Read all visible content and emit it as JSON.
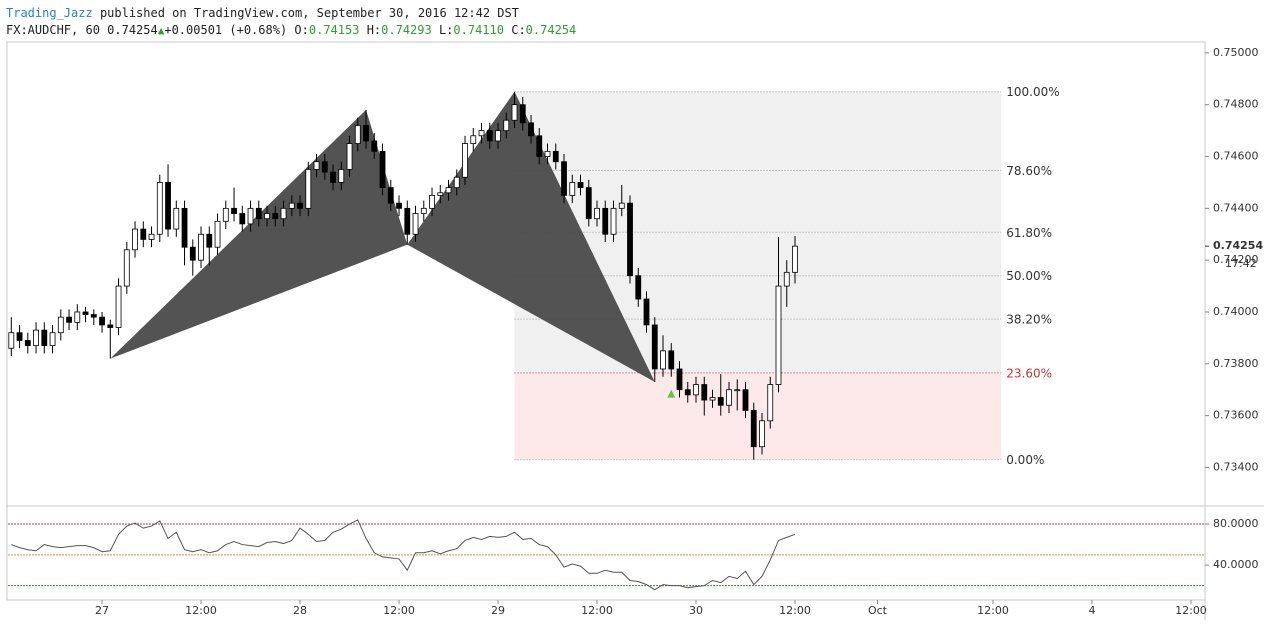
{
  "header": {
    "author": "Trading_Jazz",
    "published": "published on TradingView.com, September 30, 2016 12:42 DST",
    "symbol": "FX:AUDCHF, 60",
    "last": "0.74254",
    "change": "+0.00501 (+0.68%)",
    "ohlc": [
      {
        "label": "O:",
        "value": "0.74153"
      },
      {
        "label": "H:",
        "value": "0.74293"
      },
      {
        "label": "L:",
        "value": "0.74110"
      },
      {
        "label": "C:",
        "value": "0.74254"
      }
    ]
  },
  "chart_data": [
    {
      "type": "candlestick",
      "ohlc": [
        [
          0.7386,
          0.7398,
          0.7383,
          0.7392
        ],
        [
          0.7392,
          0.7395,
          0.7386,
          0.7389
        ],
        [
          0.7389,
          0.7392,
          0.7384,
          0.7387
        ],
        [
          0.7387,
          0.7396,
          0.7384,
          0.7393
        ],
        [
          0.7393,
          0.7396,
          0.7384,
          0.7387
        ],
        [
          0.7387,
          0.7395,
          0.7384,
          0.7392
        ],
        [
          0.7392,
          0.7401,
          0.7389,
          0.7398
        ],
        [
          0.7398,
          0.7401,
          0.7393,
          0.7396
        ],
        [
          0.7396,
          0.7403,
          0.7393,
          0.74
        ],
        [
          0.74,
          0.7402,
          0.7396,
          0.7399
        ],
        [
          0.7399,
          0.7401,
          0.7395,
          0.7398
        ],
        [
          0.7398,
          0.74,
          0.7392,
          0.7395
        ],
        [
          0.7395,
          0.7397,
          0.7382,
          0.7394
        ],
        [
          0.7394,
          0.7413,
          0.7391,
          0.741
        ],
        [
          0.741,
          0.7427,
          0.7407,
          0.7424
        ],
        [
          0.7424,
          0.7435,
          0.7421,
          0.7432
        ],
        [
          0.7432,
          0.7435,
          0.7425,
          0.7428
        ],
        [
          0.7428,
          0.7433,
          0.7425,
          0.743
        ],
        [
          0.743,
          0.7453,
          0.7427,
          0.745
        ],
        [
          0.745,
          0.7457,
          0.7429,
          0.7432
        ],
        [
          0.7432,
          0.7443,
          0.7429,
          0.744
        ],
        [
          0.744,
          0.7443,
          0.7418,
          0.7425
        ],
        [
          0.7425,
          0.7428,
          0.7414,
          0.742
        ],
        [
          0.742,
          0.7433,
          0.7417,
          0.743
        ],
        [
          0.743,
          0.7433,
          0.7418,
          0.7425
        ],
        [
          0.7425,
          0.7438,
          0.7422,
          0.7435
        ],
        [
          0.7435,
          0.7443,
          0.7432,
          0.744
        ],
        [
          0.744,
          0.7448,
          0.7435,
          0.7438
        ],
        [
          0.7438,
          0.7441,
          0.7431,
          0.7434
        ],
        [
          0.7434,
          0.7443,
          0.7431,
          0.744
        ],
        [
          0.744,
          0.7443,
          0.7433,
          0.7436
        ],
        [
          0.7436,
          0.7441,
          0.7433,
          0.7438
        ],
        [
          0.7438,
          0.7441,
          0.7433,
          0.7436
        ],
        [
          0.7436,
          0.7443,
          0.7433,
          0.744
        ],
        [
          0.744,
          0.7445,
          0.7437,
          0.7442
        ],
        [
          0.7442,
          0.7445,
          0.7437,
          0.744
        ],
        [
          0.744,
          0.7458,
          0.7437,
          0.7455
        ],
        [
          0.7455,
          0.7461,
          0.7452,
          0.7458
        ],
        [
          0.7458,
          0.7461,
          0.7451,
          0.7454
        ],
        [
          0.7454,
          0.7457,
          0.7447,
          0.745
        ],
        [
          0.745,
          0.7458,
          0.7447,
          0.7455
        ],
        [
          0.7455,
          0.7468,
          0.7452,
          0.7465
        ],
        [
          0.7465,
          0.7475,
          0.7462,
          0.7472
        ],
        [
          0.7472,
          0.7478,
          0.7463,
          0.7466
        ],
        [
          0.7466,
          0.7469,
          0.7459,
          0.7462
        ],
        [
          0.7462,
          0.7465,
          0.7445,
          0.7448
        ],
        [
          0.7448,
          0.7451,
          0.7439,
          0.7442
        ],
        [
          0.7442,
          0.7445,
          0.7437,
          0.744
        ],
        [
          0.744,
          0.7443,
          0.7426,
          0.743
        ],
        [
          0.743,
          0.7441,
          0.7427,
          0.7438
        ],
        [
          0.7438,
          0.7443,
          0.7435,
          0.744
        ],
        [
          0.744,
          0.7448,
          0.7437,
          0.7445
        ],
        [
          0.7445,
          0.7449,
          0.7442,
          0.7446
        ],
        [
          0.7446,
          0.7451,
          0.7443,
          0.7448
        ],
        [
          0.7448,
          0.7455,
          0.7445,
          0.7452
        ],
        [
          0.7452,
          0.7468,
          0.7449,
          0.7465
        ],
        [
          0.7465,
          0.7471,
          0.7462,
          0.7468
        ],
        [
          0.7468,
          0.7473,
          0.7465,
          0.747
        ],
        [
          0.747,
          0.7473,
          0.7463,
          0.7466
        ],
        [
          0.7466,
          0.7473,
          0.7463,
          0.747
        ],
        [
          0.747,
          0.7477,
          0.7467,
          0.7474
        ],
        [
          0.7474,
          0.7485,
          0.7471,
          0.748
        ],
        [
          0.748,
          0.7483,
          0.747,
          0.7473
        ],
        [
          0.7473,
          0.7476,
          0.7465,
          0.7468
        ],
        [
          0.7468,
          0.7471,
          0.7457,
          0.746
        ],
        [
          0.746,
          0.7465,
          0.7457,
          0.7462
        ],
        [
          0.7462,
          0.7465,
          0.7455,
          0.7458
        ],
        [
          0.7458,
          0.7461,
          0.7442,
          0.7445
        ],
        [
          0.7445,
          0.7453,
          0.7442,
          0.745
        ],
        [
          0.745,
          0.7453,
          0.7445,
          0.7448
        ],
        [
          0.7448,
          0.7451,
          0.7433,
          0.7436
        ],
        [
          0.7436,
          0.7443,
          0.7433,
          0.744
        ],
        [
          0.744,
          0.7443,
          0.7427,
          0.743
        ],
        [
          0.743,
          0.7443,
          0.7427,
          0.744
        ],
        [
          0.744,
          0.7449,
          0.7437,
          0.7442
        ],
        [
          0.7442,
          0.7445,
          0.7411,
          0.7414
        ],
        [
          0.7414,
          0.7417,
          0.7402,
          0.7405
        ],
        [
          0.7405,
          0.7408,
          0.7392,
          0.7395
        ],
        [
          0.7395,
          0.7398,
          0.7373,
          0.7378
        ],
        [
          0.7378,
          0.7391,
          0.7375,
          0.7385
        ],
        [
          0.7385,
          0.7388,
          0.7375,
          0.7378
        ],
        [
          0.7378,
          0.7381,
          0.7367,
          0.737
        ],
        [
          0.737,
          0.7373,
          0.7365,
          0.7368
        ],
        [
          0.7368,
          0.7375,
          0.7365,
          0.7372
        ],
        [
          0.7372,
          0.7375,
          0.736,
          0.7366
        ],
        [
          0.7366,
          0.737,
          0.7363,
          0.7367
        ],
        [
          0.7367,
          0.7376,
          0.736,
          0.7364
        ],
        [
          0.7364,
          0.7373,
          0.7361,
          0.737
        ],
        [
          0.737,
          0.7374,
          0.7362,
          0.737
        ],
        [
          0.737,
          0.7373,
          0.7359,
          0.7362
        ],
        [
          0.7362,
          0.7365,
          0.7343,
          0.7348
        ],
        [
          0.7348,
          0.7361,
          0.7345,
          0.7358
        ],
        [
          0.7358,
          0.7375,
          0.7355,
          0.7372
        ],
        [
          0.7372,
          0.7429,
          0.7369,
          0.741
        ],
        [
          0.741,
          0.742,
          0.7402,
          0.74153
        ],
        [
          0.74153,
          0.74293,
          0.7411,
          0.74254
        ]
      ],
      "up_color": "#ffffff",
      "down_color": "#000000",
      "edge_color": "#000000",
      "xlim": [
        -0.4,
        144.7
      ],
      "xticks": [
        {
          "value": 11,
          "label": "27"
        },
        {
          "value": 23,
          "label": "12:00"
        },
        {
          "value": 35,
          "label": "28"
        },
        {
          "value": 47,
          "label": "12:00"
        },
        {
          "value": 59,
          "label": "29"
        },
        {
          "value": 71,
          "label": "12:00"
        },
        {
          "value": 83,
          "label": "30"
        },
        {
          "value": 95,
          "label": "12:00"
        },
        {
          "value": 105,
          "label": "Oct"
        },
        {
          "value": 119,
          "label": "12:00"
        },
        {
          "value": 131,
          "label": "4"
        },
        {
          "value": 143,
          "label": "12:00"
        }
      ],
      "ylim": [
        0.73255,
        0.75042
      ],
      "yticks": [
        {
          "value": 0.75,
          "label": "0.75000"
        },
        {
          "value": 0.748,
          "label": "0.74800"
        },
        {
          "value": 0.746,
          "label": "0.74600"
        },
        {
          "value": 0.744,
          "label": "0.74400"
        },
        {
          "value": 0.742,
          "label": "0.74200"
        },
        {
          "value": 0.74,
          "label": "0.74000"
        },
        {
          "value": 0.738,
          "label": "0.73800"
        },
        {
          "value": 0.736,
          "label": "0.73600"
        },
        {
          "value": 0.734,
          "label": "0.73400"
        }
      ],
      "last_price": {
        "value": 0.74254,
        "label": "0.74254"
      },
      "countdown": "17:42",
      "pattern": {
        "x": [
          12,
          43,
          48,
          61,
          78
        ],
        "y": [
          0.7382,
          0.7478,
          0.7426,
          0.7485,
          0.7373
        ],
        "color": "#4a4a4a"
      },
      "fib": {
        "x": [
          61,
          120
        ],
        "high": 0.7485,
        "low": 0.7343,
        "levels": [
          100,
          78.6,
          61.8,
          50,
          38.2,
          23.6,
          0
        ],
        "value_labels": [
          "100.00%",
          "78.60%",
          "61.80%",
          "50.00%",
          "38.20%",
          "23.60%",
          "0.00%"
        ],
        "fill": "#f0f0f0",
        "line_color": "#999999",
        "highlight_level": 23.6,
        "highlight_fill": "#fde9e9",
        "highlight_color": "#cc3333"
      },
      "signal": {
        "x": 80,
        "y": 0.73685,
        "color": "#6abf4b"
      }
    },
    {
      "type": "line",
      "values": [
        60,
        57,
        55,
        54,
        60,
        58,
        57,
        58,
        59,
        59,
        57,
        53,
        54,
        70,
        78,
        81,
        76,
        78,
        83,
        66,
        72,
        55,
        53,
        55,
        52,
        54,
        60,
        63,
        60,
        59,
        58,
        62,
        63,
        61,
        64,
        76,
        70,
        63,
        64,
        72,
        75,
        80,
        84,
        66,
        52,
        48,
        47,
        46,
        35,
        52,
        52,
        54,
        51,
        54,
        56,
        64,
        67,
        65,
        68,
        67,
        68,
        72,
        65,
        66,
        60,
        58,
        50,
        38,
        41,
        39,
        32,
        32,
        35,
        33,
        33,
        25,
        24,
        21,
        16,
        21,
        20,
        20,
        18,
        19,
        20,
        25,
        23,
        29,
        27,
        34,
        21,
        29,
        45,
        64,
        67,
        70
      ],
      "color": "#555555",
      "ylim": [
        6,
        96.6
      ],
      "yticks": [
        {
          "value": 80,
          "label": "80.0000"
        },
        {
          "value": 40,
          "label": "40.0000"
        }
      ],
      "levels": [
        80,
        50,
        20
      ],
      "level_colors": [
        "#cc3333",
        "#e08a3c",
        "#3a8a3a"
      ]
    }
  ]
}
